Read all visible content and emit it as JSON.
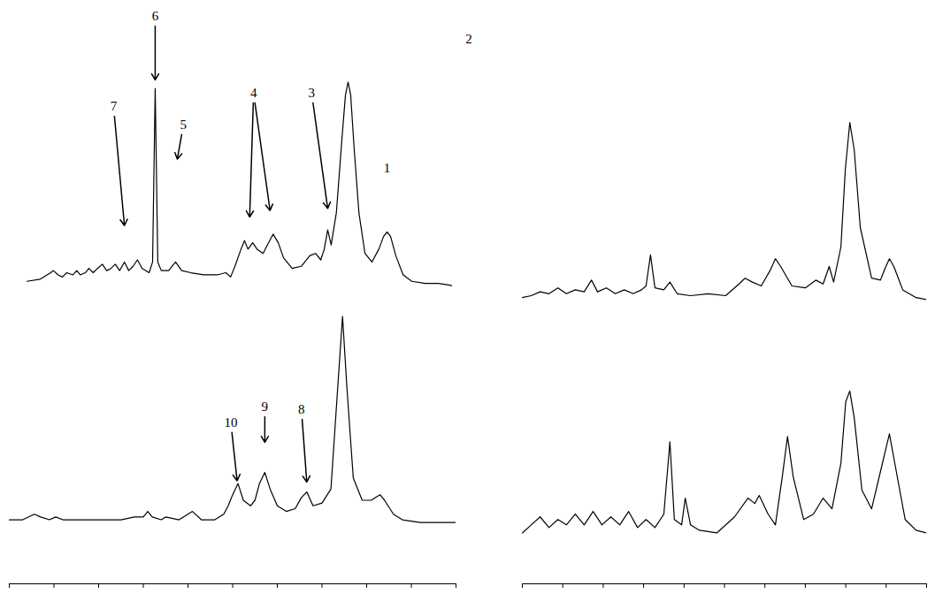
{
  "page_label": "2",
  "chart_data": [
    {
      "type": "line",
      "color": "#000000",
      "tick_labels": false,
      "xlim": [
        0,
        100
      ],
      "ylim": [
        0,
        130
      ],
      "x": [
        1,
        4.1,
        6.5,
        7.1,
        8.2,
        9.2,
        10.2,
        11.6,
        12.5,
        13.3,
        14.5,
        15.3,
        16.3,
        17.3,
        18.4,
        19.4,
        20.4,
        21.4,
        22.4,
        23.5,
        24.5,
        25.5,
        26.5,
        27.6,
        29.2,
        30,
        30.6,
        31.2,
        32,
        33.7,
        35.3,
        36.7,
        38.8,
        41.8,
        44.9,
        46.9,
        48,
        49,
        50.4,
        51.2,
        52,
        53.1,
        54.1,
        55.5,
        56.5,
        57.8,
        59,
        60.2,
        62.2,
        64.3,
        66.3,
        67.6,
        68.8,
        69.6,
        70.4,
        71.2,
        72.4,
        73.7,
        74.5,
        75.1,
        75.7,
        76.5,
        77.6,
        79,
        80.6,
        82.2,
        83.3,
        84.1,
        84.9,
        86.1,
        87.8,
        89.8,
        92.9,
        95.9,
        99
      ],
      "values": [
        3,
        4,
        7,
        8,
        6,
        5,
        7,
        6,
        8,
        6,
        7,
        9,
        7,
        9,
        11,
        8,
        9,
        11,
        8,
        12,
        8,
        10,
        13,
        9,
        7,
        12,
        93,
        12,
        8,
        8,
        12,
        8,
        7,
        6,
        6,
        7,
        5,
        10,
        18,
        22,
        18,
        21,
        18,
        16,
        20,
        25,
        21,
        14,
        9,
        10,
        15,
        16,
        13,
        18,
        27,
        20,
        35,
        70,
        90,
        96,
        90,
        65,
        35,
        16,
        12,
        18,
        24,
        26,
        24,
        15,
        6,
        3,
        2,
        2,
        1
      ],
      "annotations": [
        {
          "text": "7",
          "x": 21,
          "y": 84.6,
          "arrows": [
            {
              "x": 23.5,
              "y": 29
            }
          ]
        },
        {
          "text": "6",
          "x": 30.6,
          "y": 126.7,
          "arrows": [
            {
              "x": 30.6,
              "y": 97
            }
          ]
        },
        {
          "text": "5",
          "x": 37.1,
          "y": 76,
          "arrows": [
            {
              "x": 35.7,
              "y": 60
            }
          ]
        },
        {
          "text": "4",
          "x": 53.3,
          "y": 90.8,
          "arrows": [
            {
              "x": 52.4,
              "y": 33
            },
            {
              "x": 57.1,
              "y": 36
            }
          ]
        },
        {
          "text": "3",
          "x": 66.7,
          "y": 90.8,
          "arrows": [
            {
              "x": 70.4,
              "y": 37
            }
          ]
        },
        {
          "text": "1",
          "x": 84.1,
          "y": 55.7,
          "arrows": []
        }
      ]
    },
    {
      "type": "line",
      "color": "#000000",
      "tick_labels": false,
      "xlim": [
        0,
        100
      ],
      "ylim": [
        0,
        100
      ],
      "x": [
        0,
        2.2,
        4.4,
        6.6,
        8.8,
        10.9,
        13.1,
        15.3,
        17.1,
        18.6,
        20.8,
        23,
        25.2,
        27.4,
        29.5,
        30.6,
        31.7,
        32.8,
        35,
        36.5,
        38.3,
        41.6,
        46,
        50.3,
        53.6,
        55.1,
        56.9,
        59.1,
        61.3,
        62.6,
        63.9,
        66.7,
        70,
        72.6,
        74.4,
        75.9,
        77,
        78.8,
        79.9,
        81,
        82.1,
        83.6,
        86.4,
        88.6,
        89.7,
        90.8,
        91.9,
        94.1,
        97.4,
        100
      ],
      "values": [
        4,
        5,
        7,
        6,
        9,
        6,
        8,
        7,
        13,
        7,
        9,
        6,
        8,
        6,
        8,
        10,
        26,
        9,
        8,
        12,
        6,
        5,
        6,
        5,
        11,
        14,
        12,
        10,
        18,
        24,
        20,
        10,
        9,
        13,
        11,
        20,
        12,
        30,
        70,
        94,
        80,
        40,
        14,
        13,
        19,
        24,
        20,
        8,
        4,
        3
      ],
      "annotations": []
    },
    {
      "type": "line",
      "color": "#000000",
      "tick_labels": false,
      "xlim": [
        0,
        100
      ],
      "ylim": [
        0,
        100
      ],
      "xticks": [
        0,
        10,
        20,
        30,
        40,
        50,
        60,
        70,
        80,
        90,
        100
      ],
      "x": [
        0,
        3,
        5.6,
        7,
        9,
        10.4,
        12,
        15,
        20,
        25,
        28,
        30,
        31,
        32,
        34,
        35,
        38,
        40,
        41,
        43,
        46,
        48,
        49,
        50,
        51.2,
        52.4,
        54,
        55,
        56,
        57.2,
        58.4,
        60,
        62,
        64,
        65.4,
        66.6,
        68,
        70,
        72,
        73.5,
        74.6,
        75.6,
        77,
        79,
        81,
        82,
        83,
        84,
        86,
        88,
        92,
        96,
        100
      ],
      "values": [
        23,
        23,
        25,
        24,
        23,
        24,
        23,
        23,
        23,
        23,
        24,
        24,
        26,
        24,
        23,
        24,
        23,
        25,
        26,
        23,
        23,
        25,
        28,
        32,
        36,
        30,
        28,
        30,
        36,
        40,
        34,
        28,
        26,
        27,
        31,
        33,
        28,
        29,
        34,
        70,
        96,
        70,
        38,
        30,
        30,
        31,
        32,
        30,
        25,
        23,
        22,
        22,
        22
      ],
      "annotations": [
        {
          "text": "10",
          "x": 49.6,
          "y": 57.8,
          "arrows": [
            {
              "x": 51,
              "y": 37
            }
          ]
        },
        {
          "text": "9",
          "x": 57.2,
          "y": 63.5,
          "arrows": [
            {
              "x": 57.2,
              "y": 50.8
            }
          ]
        },
        {
          "text": "8",
          "x": 65.4,
          "y": 62.5,
          "arrows": [
            {
              "x": 66.6,
              "y": 36.5
            }
          ]
        }
      ]
    },
    {
      "type": "line",
      "color": "#000000",
      "tick_labels": false,
      "xlim": [
        0,
        100
      ],
      "ylim": [
        0,
        100
      ],
      "xticks": [
        0,
        10,
        20,
        30,
        40,
        50,
        60,
        70,
        80,
        90,
        100
      ],
      "x": [
        0,
        2.2,
        4.4,
        6.6,
        8.8,
        10.9,
        13.1,
        15.3,
        17.5,
        19.7,
        21.9,
        24.1,
        26.3,
        28.5,
        30.6,
        32.8,
        35,
        36.5,
        37.6,
        39.4,
        40.3,
        41.6,
        43.8,
        48.1,
        52.5,
        55.8,
        57.5,
        58.6,
        60.8,
        62.6,
        64.3,
        65.6,
        67,
        69.6,
        72,
        74.4,
        76.6,
        78.8,
        80,
        81,
        82.1,
        84,
        86.4,
        88.6,
        90.8,
        92.5,
        94.7,
        97.4,
        100
      ],
      "values": [
        19,
        22,
        25,
        21,
        24,
        22,
        26,
        22,
        27,
        22,
        25,
        22,
        27,
        21,
        24,
        21,
        26,
        53,
        24,
        22,
        32,
        22,
        20,
        19,
        25,
        32,
        30,
        33,
        26,
        22,
        40,
        55,
        40,
        24,
        26,
        32,
        28,
        45,
        68,
        72,
        62,
        35,
        28,
        42,
        56,
        42,
        24,
        20,
        19
      ],
      "annotations": []
    }
  ]
}
